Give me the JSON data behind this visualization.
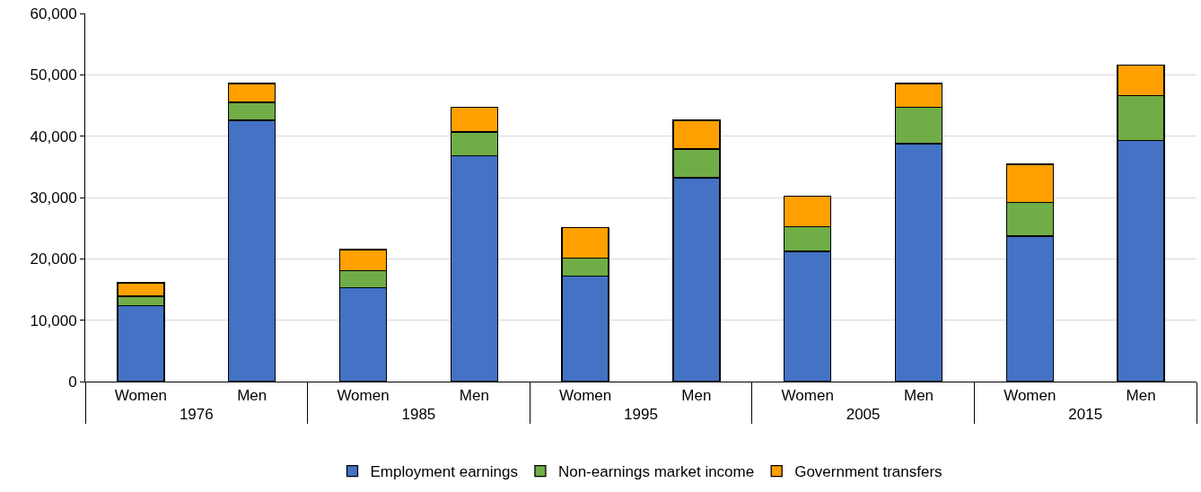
{
  "chart_data": {
    "type": "bar",
    "stacked": true,
    "categories": [
      "Women",
      "Men",
      "Women",
      "Men",
      "Women",
      "Men",
      "Women",
      "Men",
      "Women",
      "Men"
    ],
    "annotations": [
      "1976",
      "1985",
      "1995",
      "2005",
      "2015"
    ],
    "series": [
      {
        "name": "Employment earnings",
        "color": "#4472c4",
        "values": [
          12400,
          42600,
          15300,
          36800,
          17200,
          33200,
          21200,
          38800,
          23700,
          39300
        ]
      },
      {
        "name": "Non-earnings market income",
        "color": "#70ad47",
        "values": [
          1500,
          2900,
          2800,
          3900,
          2900,
          4700,
          4000,
          5900,
          5500,
          7300
        ]
      },
      {
        "name": "Government transfers",
        "color": "#ffa000",
        "values": [
          2200,
          3100,
          3400,
          4000,
          5000,
          4700,
          5000,
          3900,
          6200,
          5000
        ]
      }
    ],
    "ylim": [
      0,
      60000
    ],
    "yticks": [
      {
        "value": 0,
        "label": "0"
      },
      {
        "value": 10000,
        "label": "10,000"
      },
      {
        "value": 20000,
        "label": "20,000"
      },
      {
        "value": 30000,
        "label": "30,000"
      },
      {
        "value": 40000,
        "label": "40,000"
      },
      {
        "value": 50000,
        "label": "50,000"
      },
      {
        "value": 60000,
        "label": "60,000"
      }
    ],
    "grid": "y",
    "legend": "bottom"
  }
}
